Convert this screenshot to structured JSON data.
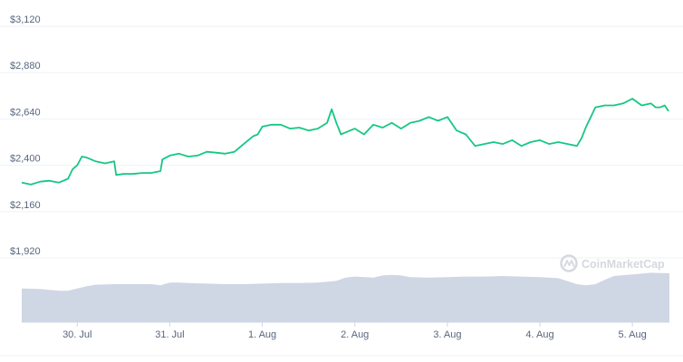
{
  "chart_data": {
    "type": "area",
    "yticks": [
      "$3,120",
      "$2,880",
      "$2,640",
      "$2,400",
      "$2,160",
      "$1,920"
    ],
    "ytick_values": [
      3120,
      2880,
      2640,
      2400,
      2160,
      1920
    ],
    "xticks": [
      "30. Jul",
      "31. Jul",
      "1. Aug",
      "2. Aug",
      "3. Aug",
      "4. Aug",
      "5. Aug"
    ],
    "xtick_values": [
      0.6,
      1.6,
      2.6,
      3.6,
      4.6,
      5.6,
      6.6
    ],
    "ylim": [
      1920,
      3120
    ],
    "xlim": [
      0,
      7
    ],
    "grid": true,
    "series": [
      {
        "values_x": [
          0.0,
          0.1,
          0.2,
          0.3,
          0.4,
          0.5,
          0.55,
          0.6,
          0.65,
          0.7,
          0.8,
          0.9,
          1.0,
          1.02,
          1.1,
          1.2,
          1.3,
          1.4,
          1.5,
          1.52,
          1.6,
          1.7,
          1.8,
          1.9,
          2.0,
          2.1,
          2.2,
          2.3,
          2.4,
          2.5,
          2.55,
          2.6,
          2.7,
          2.8,
          2.9,
          3.0,
          3.1,
          3.2,
          3.3,
          3.35,
          3.4,
          3.45,
          3.5,
          3.6,
          3.7,
          3.8,
          3.9,
          4.0,
          4.1,
          4.2,
          4.3,
          4.4,
          4.5,
          4.6,
          4.7,
          4.8,
          4.9,
          5.0,
          5.1,
          5.2,
          5.3,
          5.4,
          5.5,
          5.6,
          5.7,
          5.8,
          5.9,
          6.0,
          6.05,
          6.1,
          6.15,
          6.2,
          6.3,
          6.4,
          6.5,
          6.6,
          6.7,
          6.8,
          6.85,
          6.9,
          6.95,
          6.99
        ],
        "values_y": [
          2310,
          2300,
          2315,
          2320,
          2310,
          2330,
          2380,
          2400,
          2445,
          2440,
          2420,
          2410,
          2420,
          2350,
          2355,
          2355,
          2360,
          2360,
          2370,
          2430,
          2450,
          2460,
          2445,
          2450,
          2470,
          2465,
          2460,
          2470,
          2510,
          2550,
          2560,
          2600,
          2610,
          2610,
          2590,
          2595,
          2580,
          2590,
          2620,
          2690,
          2620,
          2560,
          2570,
          2590,
          2560,
          2610,
          2595,
          2620,
          2590,
          2620,
          2630,
          2650,
          2630,
          2650,
          2580,
          2560,
          2500,
          2510,
          2520,
          2510,
          2530,
          2500,
          2520,
          2530,
          2510,
          2520,
          2510,
          2500,
          2540,
          2600,
          2650,
          2700,
          2710,
          2710,
          2720,
          2745,
          2710,
          2720,
          2700,
          2700,
          2710,
          2680
        ],
        "color": "#16c784"
      },
      {
        "name": "volume",
        "values_x": [
          0.0,
          0.2,
          0.4,
          0.5,
          0.6,
          0.7,
          0.8,
          1.0,
          1.2,
          1.4,
          1.5,
          1.6,
          1.7,
          1.8,
          2.0,
          2.2,
          2.4,
          2.6,
          2.8,
          3.0,
          3.2,
          3.4,
          3.5,
          3.6,
          3.8,
          3.9,
          4.0,
          4.1,
          4.2,
          4.4,
          4.6,
          4.8,
          5.0,
          5.2,
          5.4,
          5.6,
          5.8,
          6.0,
          6.1,
          6.2,
          6.3,
          6.4,
          6.6,
          6.8,
          7.0
        ],
        "values_y": [
          0.62,
          0.61,
          0.58,
          0.58,
          0.62,
          0.66,
          0.69,
          0.7,
          0.7,
          0.7,
          0.68,
          0.73,
          0.73,
          0.72,
          0.71,
          0.7,
          0.7,
          0.71,
          0.72,
          0.72,
          0.73,
          0.76,
          0.82,
          0.84,
          0.82,
          0.86,
          0.87,
          0.86,
          0.83,
          0.82,
          0.83,
          0.84,
          0.84,
          0.85,
          0.84,
          0.83,
          0.81,
          0.7,
          0.68,
          0.7,
          0.78,
          0.85,
          0.88,
          0.91,
          0.9
        ],
        "color": "#cfd6e4"
      }
    ]
  },
  "watermark": {
    "text": "CoinMarketCap",
    "color": "#d5d8de"
  }
}
